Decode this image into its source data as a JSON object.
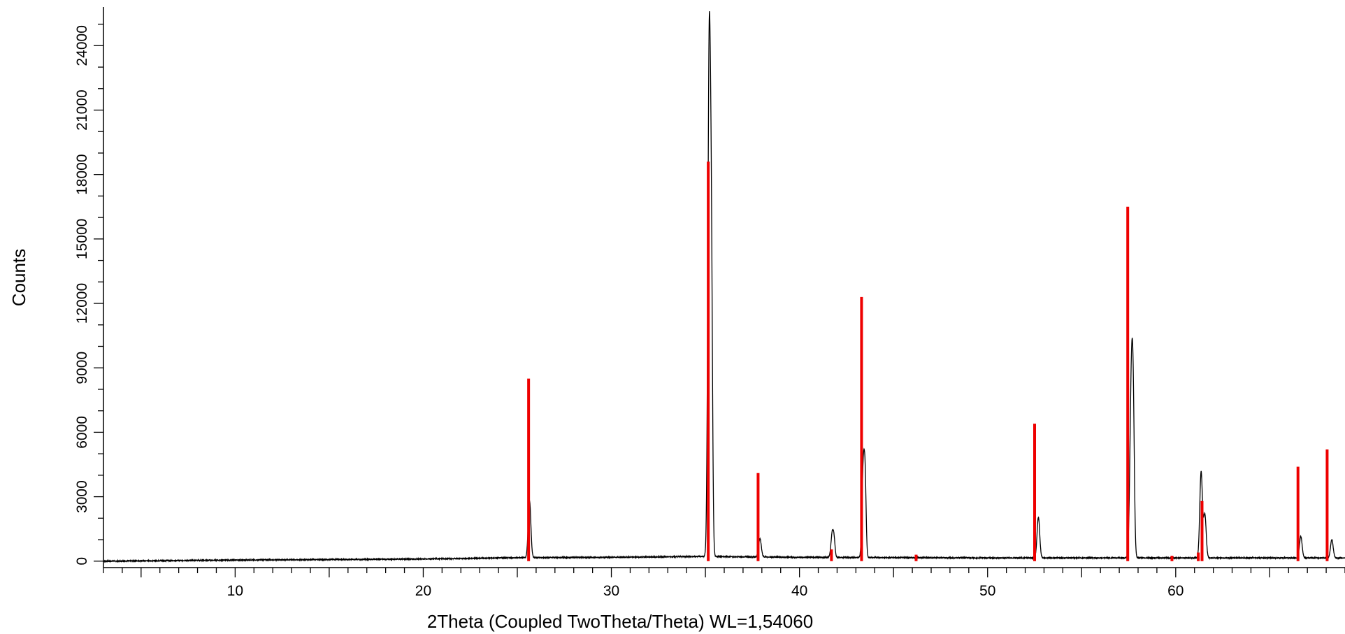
{
  "chart_data": {
    "type": "line",
    "title": "",
    "xlabel": "2Theta (Coupled TwoTheta/Theta) WL=1,54060",
    "ylabel": "Counts",
    "xlim": [
      3,
      69
    ],
    "ylim": [
      -300,
      25800
    ],
    "x_ticks": [
      10,
      20,
      30,
      40,
      50,
      60
    ],
    "y_ticks": [
      0,
      3000,
      6000,
      9000,
      12000,
      15000,
      18000,
      21000,
      24000
    ],
    "grid": false,
    "legend": "none",
    "colors": {
      "measured": "#000000",
      "reference": "#ee0000",
      "axis": "#000000"
    },
    "measured_background": [
      [
        3,
        0
      ],
      [
        10,
        50
      ],
      [
        20,
        100
      ],
      [
        25,
        160
      ],
      [
        30,
        180
      ],
      [
        35,
        220
      ],
      [
        40,
        180
      ],
      [
        50,
        150
      ],
      [
        55,
        150
      ],
      [
        60,
        150
      ],
      [
        69,
        150
      ]
    ],
    "measured_peaks": [
      {
        "x": 25.65,
        "y": 2650,
        "w": 0.07
      },
      {
        "x": 35.2,
        "y": 23300,
        "w": 0.07
      },
      {
        "x": 35.32,
        "y": 12000,
        "w": 0.06
      },
      {
        "x": 37.9,
        "y": 850,
        "w": 0.07
      },
      {
        "x": 41.75,
        "y": 1200,
        "w": 0.07
      },
      {
        "x": 41.85,
        "y": 550,
        "w": 0.05
      },
      {
        "x": 43.4,
        "y": 4500,
        "w": 0.07
      },
      {
        "x": 43.5,
        "y": 2500,
        "w": 0.05
      },
      {
        "x": 52.7,
        "y": 1900,
        "w": 0.07
      },
      {
        "x": 57.65,
        "y": 8500,
        "w": 0.08
      },
      {
        "x": 57.75,
        "y": 4500,
        "w": 0.06
      },
      {
        "x": 61.35,
        "y": 4000,
        "w": 0.07
      },
      {
        "x": 61.55,
        "y": 2000,
        "w": 0.07
      },
      {
        "x": 66.65,
        "y": 1000,
        "w": 0.07
      },
      {
        "x": 68.3,
        "y": 850,
        "w": 0.07
      }
    ],
    "reference_lines": [
      {
        "x": 25.6,
        "y": 8500
      },
      {
        "x": 35.15,
        "y": 18600
      },
      {
        "x": 37.8,
        "y": 4100
      },
      {
        "x": 41.7,
        "y": 550
      },
      {
        "x": 43.3,
        "y": 12300
      },
      {
        "x": 46.2,
        "y": 300
      },
      {
        "x": 52.5,
        "y": 6400
      },
      {
        "x": 57.45,
        "y": 16500
      },
      {
        "x": 59.8,
        "y": 250
      },
      {
        "x": 61.2,
        "y": 400
      },
      {
        "x": 61.4,
        "y": 2800
      },
      {
        "x": 66.5,
        "y": 4400
      },
      {
        "x": 68.05,
        "y": 5200
      }
    ]
  }
}
